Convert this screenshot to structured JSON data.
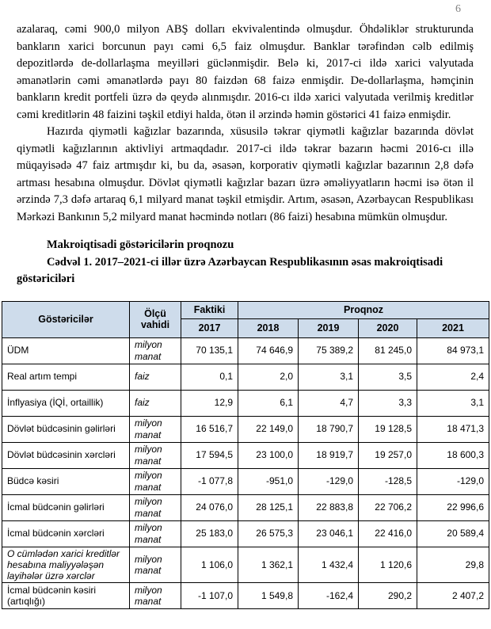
{
  "page": {
    "number": "6"
  },
  "paragraphs": [
    "azalaraq, cəmi 900,0 milyon ABŞ dolları ekvivalentində olmuşdur. Öhdəliklər strukturunda bankların xarici borcunun payı cəmi 6,5 faiz olmuşdur. Banklar tərəfindən cəlb edilmiş depozitlərdə de-dollarlaşma meyilləri güclənmişdir. Belə ki, 2017-ci ildə xarici valyutada əmanətlərin cəmi əmanətlərdə payı 80 faizdən 68 faizə enmişdir. De-dollarlaşma, həmçinin bankların kredit portfeli üzrə də qeydə alınmışdır. 2016-cı ildə xarici valyutada verilmiş kreditlər cəmi kreditlərin 48 faizini təşkil etdiyi halda, ötən il ərzində həmin göstərici 41 faizə enmişdir.",
    "Hazırda qiymətli kağızlar bazarında, xüsusilə təkrar qiymətli kağızlar bazarında dövlət qiymətli kağızlarının aktivliyi artmaqdadır. 2017-ci ildə təkrar bazarın həcmi 2016-cı illə müqayisədə 47 faiz artmışdır ki, bu da, əsasən, korporativ qiymətli kağızlar bazarının 2,8 dəfə artması hesabına olmuşdur. Dövlət qiymətli kağızlar bazarı üzrə əməliyyatların həcmi isə ötən il ərzində 7,3 dəfə artaraq 6,1 milyard manat təşkil etmişdir. Artım, əsasən, Azərbaycan Respublikası Mərkəzi Bankının 5,2 milyard manat həcmində notları (86 faizi) hesabına mümkün olmuşdur."
  ],
  "headings": {
    "section_title": "Makroiqtisadi göstəricilərin proqnozu",
    "table_caption": "Cədvəl 1. 2017–2021-ci illər üzrə Azərbaycan Respublikasının əsas makroiqtisadi göstəriciləri"
  },
  "table": {
    "header": {
      "indicator": "Göstəricilər",
      "unit": "Ölçü vahidi",
      "actual": "Faktiki",
      "forecast": "Proqnoz",
      "years": [
        "2017",
        "2018",
        "2019",
        "2020",
        "2021"
      ]
    },
    "rows": [
      {
        "label": "ÜDM",
        "label_italic": false,
        "unit": "milyon manat",
        "values": [
          "70 135,1",
          "74 646,9",
          "75 389,2",
          "81 245,0",
          "84 973,1"
        ]
      },
      {
        "label": "Real artım tempi",
        "label_italic": false,
        "unit": "faiz",
        "values": [
          "0,1",
          "2,0",
          "3,1",
          "3,5",
          "2,4"
        ]
      },
      {
        "label": "İnflyasiya (İQİ, ortaillik)",
        "label_italic": false,
        "unit": "faiz",
        "values": [
          "12,9",
          "6,1",
          "4,7",
          "3,3",
          "3,1"
        ]
      },
      {
        "label": "Dövlət büdcəsinin gəlirləri",
        "label_italic": false,
        "unit": "milyon manat",
        "values": [
          "16 516,7",
          "22 149,0",
          "18 790,7",
          "19 128,5",
          "18 471,3"
        ]
      },
      {
        "label": "Dövlət büdcəsinin xərcləri",
        "label_italic": false,
        "unit": "milyon manat",
        "values": [
          "17 594,5",
          "23 100,0",
          "18 919,7",
          "19 257,0",
          "18 600,3"
        ]
      },
      {
        "label": "Büdcə kəsiri",
        "label_italic": false,
        "unit": "milyon manat",
        "values": [
          "-1 077,8",
          "-951,0",
          "-129,0",
          "-128,5",
          "-129,0"
        ]
      },
      {
        "label": "İcmal büdcənin gəlirləri",
        "label_italic": false,
        "unit": "milyon manat",
        "values": [
          "24 076,0",
          "28 125,1",
          "22 883,8",
          "22 706,2",
          "22 996,6"
        ]
      },
      {
        "label": "İcmal büdcənin xərcləri",
        "label_italic": false,
        "unit": "milyon manat",
        "values": [
          "25 183,0",
          "26 575,3",
          "23 046,1",
          "22 416,0",
          "20 589,4"
        ]
      },
      {
        "label": "O cümlədən xarici kreditlər hesabına maliyyələşən layihələr üzrə xərclər",
        "label_italic": true,
        "unit": "milyon manat",
        "values": [
          "1 106,0",
          "1 362,1",
          "1 432,4",
          "1 120,6",
          "29,8"
        ]
      },
      {
        "label": "İcmal büdcənin kəsiri (artıqlığı)",
        "label_italic": false,
        "unit": "milyon manat",
        "values": [
          "-1 107,0",
          "1 549,8",
          "-162,4",
          "290,2",
          "2 407,2"
        ]
      }
    ]
  },
  "colors": {
    "table_header_bg": "#CEDCEB",
    "table_border": "#000000",
    "page_number": "#828282",
    "body_text": "#000000"
  }
}
